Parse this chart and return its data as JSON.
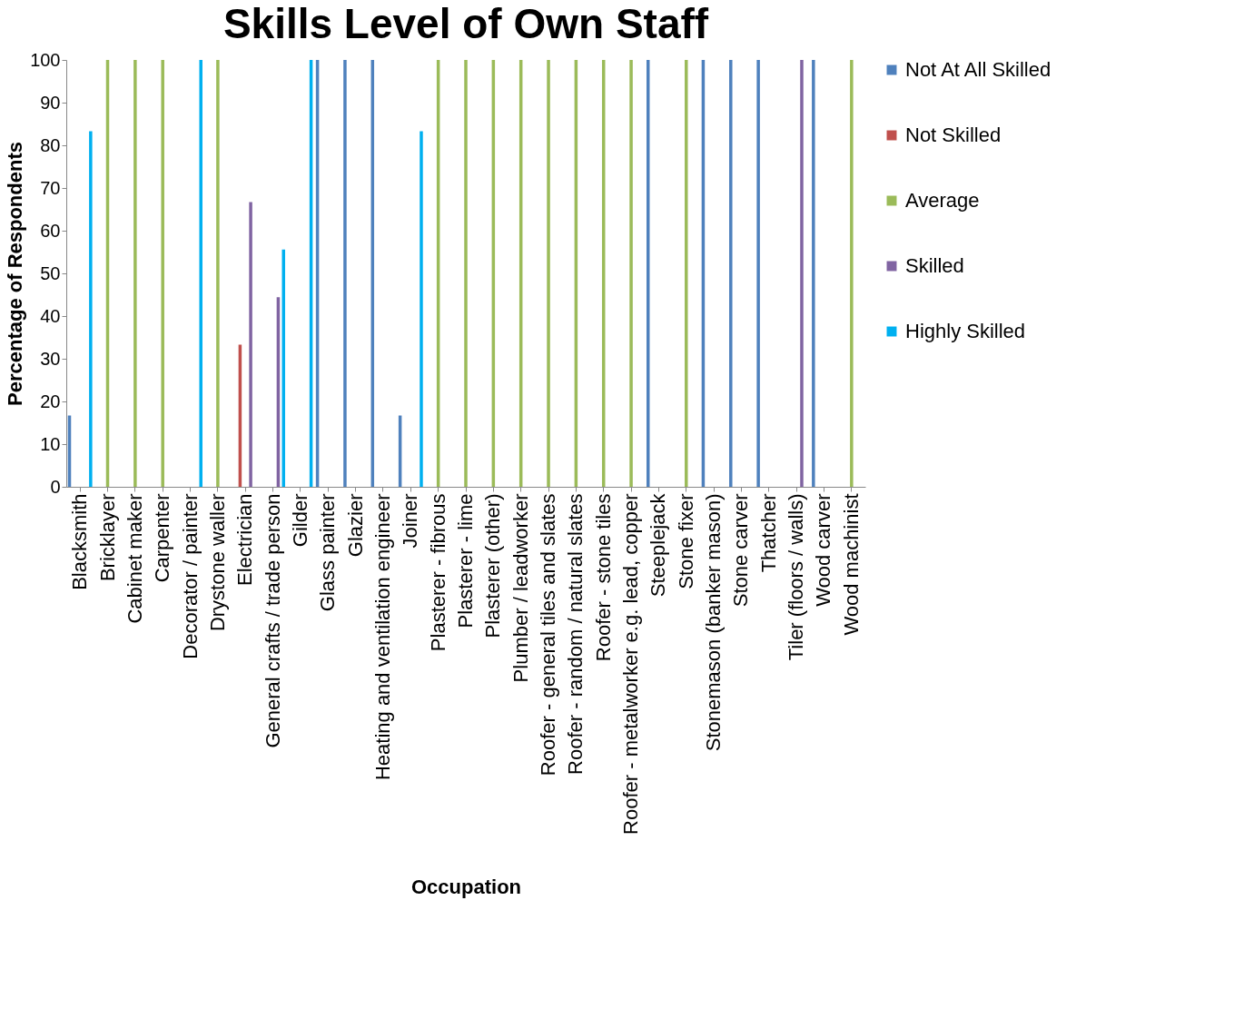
{
  "chart_data": {
    "type": "bar",
    "title": "Skills Level of Own Staff",
    "xlabel": "Occupation",
    "ylabel": "Percentage of Respondents",
    "categories": [
      "Blacksmith",
      "Bricklayer",
      "Cabinet maker",
      "Carpenter",
      "Decorator / painter",
      "Drystone waller",
      "Electrician",
      "General crafts / trade person",
      "Gilder",
      "Glass painter",
      "Glazier",
      "Heating and ventilation engineer",
      "Joiner",
      "Plasterer - fibrous",
      "Plasterer - lime",
      "Plasterer (other)",
      "Plumber / leadworker",
      "Roofer - general tiles and slates",
      "Roofer - random / natural slates",
      "Roofer - stone tiles",
      "Roofer - metalworker e.g. lead, copper",
      "Steeplejack",
      "Stone fixer",
      "Stonemason (banker mason)",
      "Stone carver",
      "Thatcher",
      "Tiler (floors / walls)",
      "Wood carver",
      "Wood machinist"
    ],
    "series": [
      {
        "name": "Not At All Skilled",
        "color": "#4f81bd",
        "values": [
          16.7,
          null,
          null,
          null,
          null,
          null,
          null,
          null,
          null,
          100,
          100,
          100,
          16.7,
          null,
          null,
          null,
          null,
          null,
          null,
          null,
          null,
          100,
          null,
          100,
          100,
          100,
          null,
          100,
          null
        ]
      },
      {
        "name": "Not Skilled",
        "color": "#c0504d",
        "values": [
          null,
          null,
          null,
          null,
          null,
          null,
          33.3,
          null,
          null,
          null,
          null,
          null,
          null,
          null,
          null,
          null,
          null,
          null,
          null,
          null,
          null,
          null,
          null,
          null,
          null,
          null,
          null,
          null,
          null
        ]
      },
      {
        "name": "Average",
        "color": "#9bbb59",
        "values": [
          null,
          100,
          100,
          100,
          null,
          100,
          null,
          null,
          null,
          null,
          null,
          null,
          null,
          100,
          100,
          100,
          100,
          100,
          100,
          100,
          100,
          null,
          100,
          null,
          null,
          null,
          null,
          null,
          100
        ]
      },
      {
        "name": "Skilled",
        "color": "#8064a2",
        "values": [
          null,
          null,
          null,
          null,
          null,
          null,
          66.7,
          44.4,
          null,
          null,
          null,
          null,
          null,
          null,
          null,
          null,
          null,
          null,
          null,
          null,
          null,
          null,
          null,
          null,
          null,
          null,
          100,
          null,
          null
        ]
      },
      {
        "name": "Highly Skilled",
        "color": "#00b0f0",
        "values": [
          83.3,
          null,
          null,
          null,
          100,
          null,
          null,
          55.6,
          100,
          null,
          null,
          null,
          83.3,
          null,
          null,
          null,
          null,
          null,
          null,
          null,
          null,
          null,
          null,
          null,
          null,
          null,
          null,
          null,
          null
        ]
      }
    ],
    "ylim": [
      0,
      100
    ],
    "yticks": [
      0,
      10,
      20,
      30,
      40,
      50,
      60,
      70,
      80,
      90,
      100
    ],
    "grid": false,
    "legend": "right"
  }
}
